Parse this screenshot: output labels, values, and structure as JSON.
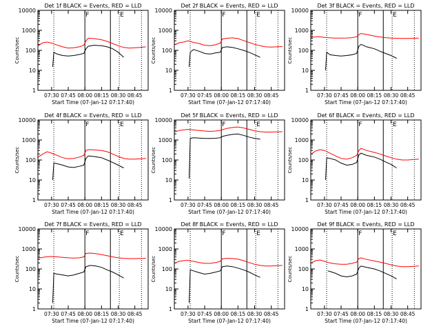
{
  "chart_data": {
    "type": "line",
    "yscale": "log",
    "ylim": [
      1,
      10000
    ],
    "xlim": [
      "07:17:40",
      "08:57:00"
    ],
    "x_ticks": [
      "07:30",
      "07:45",
      "08:00",
      "08:15",
      "08:30",
      "08:45"
    ],
    "y_ticks": [
      "1",
      "10",
      "100",
      "1000",
      "10000"
    ],
    "ylabel": "Counts/sec",
    "xlabel": "Start Time (07-Jan-12 07:17:40)",
    "colors": {
      "events": "#000000",
      "lld": "#ff0000"
    },
    "markers": {
      "solid": [
        "08:00",
        "08:23"
      ],
      "dotted": [
        "07:32",
        "08:31",
        "08:51"
      ],
      "labels": [
        {
          "at": "08:00",
          "text": "F"
        },
        {
          "at": "08:31",
          "text": "E"
        }
      ]
    },
    "panels": [
      {
        "title": "Det 1f BLACK = Events, RED = LLD",
        "series": [
          {
            "name": "Events",
            "x": [
              "07:31",
              "07:32",
              "07:35",
              "07:40",
              "07:45",
              "07:50",
              "07:55",
              "07:59",
              "08:01",
              "08:03",
              "08:08",
              "08:15",
              "08:20",
              "08:25",
              "08:30",
              "08:35"
            ],
            "values": [
              15,
              80,
              65,
              55,
              52,
              55,
              62,
              70,
              120,
              160,
              180,
              170,
              150,
              120,
              80,
              45
            ]
          },
          {
            "name": "LLD",
            "x": [
              "07:18",
              "07:22",
              "07:26",
              "07:30",
              "07:35",
              "07:40",
              "07:45",
              "07:50",
              "07:55",
              "07:59",
              "08:01",
              "08:03",
              "08:08",
              "08:15",
              "08:20",
              "08:25",
              "08:30",
              "08:35",
              "08:40",
              "08:45",
              "08:50",
              "08:55"
            ],
            "values": [
              170,
              240,
              260,
              230,
              185,
              150,
              130,
              135,
              150,
              180,
              300,
              400,
              390,
              340,
              280,
              220,
              170,
              140,
              130,
              135,
              140,
              150
            ]
          }
        ]
      },
      {
        "title": "Det 2f BLACK = Events, RED = LLD",
        "series": [
          {
            "name": "Events",
            "x": [
              "07:31",
              "07:32",
              "07:35",
              "07:40",
              "07:45",
              "07:50",
              "07:55",
              "07:59",
              "08:01",
              "08:05",
              "08:10",
              "08:15",
              "08:20",
              "08:25",
              "08:30",
              "08:35"
            ],
            "values": [
              15,
              80,
              110,
              90,
              70,
              65,
              75,
              80,
              140,
              150,
              140,
              120,
              100,
              80,
              60,
              45
            ]
          },
          {
            "name": "LLD",
            "x": [
              "07:18",
              "07:22",
              "07:26",
              "07:30",
              "07:35",
              "07:40",
              "07:45",
              "07:50",
              "07:55",
              "07:59",
              "08:01",
              "08:05",
              "08:10",
              "08:15",
              "08:20",
              "08:25",
              "08:30",
              "08:35",
              "08:40",
              "08:45",
              "08:50",
              "08:55"
            ],
            "values": [
              190,
              240,
              260,
              300,
              250,
              220,
              180,
              170,
              190,
              230,
              370,
              400,
              420,
              390,
              310,
              250,
              200,
              170,
              150,
              145,
              150,
              155
            ]
          }
        ]
      },
      {
        "title": "Det 3f BLACK = Events, RED = LLD",
        "series": [
          {
            "name": "Events",
            "x": [
              "07:31",
              "07:32",
              "07:35",
              "07:40",
              "07:45",
              "07:50",
              "07:55",
              "07:59",
              "08:01",
              "08:03",
              "08:08",
              "08:15",
              "08:20",
              "08:25",
              "08:30",
              "08:35"
            ],
            "values": [
              10,
              80,
              60,
              55,
              52,
              55,
              60,
              70,
              160,
              200,
              150,
              120,
              90,
              70,
              55,
              40
            ]
          },
          {
            "name": "LLD",
            "x": [
              "07:18",
              "07:25",
              "07:30",
              "07:35",
              "07:40",
              "07:45",
              "07:50",
              "07:55",
              "07:59",
              "08:01",
              "08:03",
              "08:08",
              "08:15",
              "08:20",
              "08:25",
              "08:30",
              "08:35",
              "08:40",
              "08:45",
              "08:50",
              "08:55"
            ],
            "values": [
              450,
              480,
              440,
              420,
              410,
              410,
              415,
              430,
              480,
              600,
              700,
              620,
              520,
              470,
              430,
              410,
              400,
              395,
              395,
              400,
              405
            ]
          }
        ]
      },
      {
        "title": "Det 4f BLACK = Events, RED = LLD",
        "series": [
          {
            "name": "Events",
            "x": [
              "07:31",
              "07:32",
              "07:35",
              "07:40",
              "07:45",
              "07:50",
              "07:55",
              "07:59",
              "08:01",
              "08:03",
              "08:08",
              "08:15",
              "08:20",
              "08:25",
              "08:30",
              "08:35"
            ],
            "values": [
              10,
              70,
              65,
              55,
              45,
              42,
              48,
              55,
              120,
              160,
              150,
              130,
              100,
              75,
              55,
              40
            ]
          },
          {
            "name": "LLD",
            "x": [
              "07:18",
              "07:22",
              "07:26",
              "07:30",
              "07:35",
              "07:40",
              "07:45",
              "07:50",
              "07:55",
              "07:59",
              "08:01",
              "08:03",
              "08:08",
              "08:15",
              "08:20",
              "08:25",
              "08:30",
              "08:35",
              "08:40",
              "08:45",
              "08:50",
              "08:55"
            ],
            "values": [
              140,
              200,
              260,
              220,
              170,
              130,
              115,
              120,
              140,
              170,
              300,
              330,
              320,
              300,
              260,
              200,
              150,
              120,
              110,
              110,
              115,
              120
            ]
          }
        ]
      },
      {
        "title": "Det 5f BLACK = Events, RED = LLD",
        "series": [
          {
            "name": "Events",
            "x": [
              "07:31",
              "07:32",
              "07:35",
              "07:40",
              "07:45",
              "07:50",
              "07:55",
              "07:59",
              "08:01",
              "08:05",
              "08:10",
              "08:15",
              "08:20",
              "08:25",
              "08:30",
              "08:35"
            ],
            "values": [
              12,
              1200,
              1300,
              1250,
              1200,
              1200,
              1220,
              1300,
              1500,
              1700,
              1900,
              2000,
              1700,
              1400,
              1200,
              1100
            ]
          },
          {
            "name": "LLD",
            "x": [
              "07:18",
              "07:22",
              "07:26",
              "07:30",
              "07:35",
              "07:40",
              "07:45",
              "07:50",
              "07:55",
              "07:59",
              "08:01",
              "08:05",
              "08:10",
              "08:15",
              "08:20",
              "08:25",
              "08:30",
              "08:35",
              "08:40",
              "08:45",
              "08:50",
              "08:55"
            ],
            "values": [
              2500,
              3000,
              3200,
              3400,
              3200,
              3000,
              2800,
              2700,
              2800,
              3000,
              3300,
              3800,
              4200,
              4500,
              4000,
              3400,
              2900,
              2600,
              2500,
              2500,
              2550,
              2600
            ]
          }
        ]
      },
      {
        "title": "Det 6f BLACK = Events, RED = LLD",
        "series": [
          {
            "name": "Events",
            "x": [
              "07:31",
              "07:32",
              "07:35",
              "07:40",
              "07:45",
              "07:50",
              "07:55",
              "07:59",
              "08:01",
              "08:03",
              "08:08",
              "08:15",
              "08:20",
              "08:25",
              "08:30",
              "08:35"
            ],
            "values": [
              10,
              130,
              120,
              100,
              70,
              55,
              60,
              75,
              180,
              220,
              170,
              140,
              110,
              80,
              60,
              40
            ]
          },
          {
            "name": "LLD",
            "x": [
              "07:18",
              "07:22",
              "07:26",
              "07:30",
              "07:35",
              "07:40",
              "07:45",
              "07:50",
              "07:55",
              "07:59",
              "08:01",
              "08:03",
              "08:08",
              "08:15",
              "08:20",
              "08:25",
              "08:30",
              "08:35",
              "08:40",
              "08:45",
              "08:50",
              "08:55"
            ],
            "values": [
              200,
              280,
              330,
              300,
              220,
              160,
              120,
              110,
              130,
              170,
              300,
              380,
              300,
              240,
              200,
              160,
              130,
              110,
              100,
              100,
              105,
              110
            ]
          }
        ]
      },
      {
        "title": "Det 7f BLACK = Events, RED = LLD",
        "series": [
          {
            "name": "Events",
            "x": [
              "07:31",
              "07:32",
              "07:35",
              "07:40",
              "07:45",
              "07:50",
              "07:55",
              "07:59",
              "08:01",
              "08:05",
              "08:10",
              "08:15",
              "08:20",
              "08:25",
              "08:30",
              "08:35"
            ],
            "values": [
              2,
              60,
              55,
              50,
              45,
              50,
              60,
              70,
              130,
              150,
              140,
              120,
              90,
              70,
              50,
              35
            ]
          },
          {
            "name": "LLD",
            "x": [
              "07:18",
              "07:25",
              "07:30",
              "07:35",
              "07:40",
              "07:45",
              "07:50",
              "07:55",
              "07:59",
              "08:01",
              "08:05",
              "08:10",
              "08:15",
              "08:20",
              "08:25",
              "08:30",
              "08:35",
              "08:40",
              "08:45",
              "08:50",
              "08:55"
            ],
            "values": [
              350,
              400,
              420,
              400,
              380,
              360,
              350,
              360,
              400,
              600,
              620,
              580,
              520,
              460,
              400,
              360,
              340,
              330,
              330,
              335,
              340
            ]
          }
        ]
      },
      {
        "title": "Det 8f BLACK = Events, RED = LLD",
        "series": [
          {
            "name": "Events",
            "x": [
              "07:31",
              "07:32",
              "07:35",
              "07:40",
              "07:45",
              "07:50",
              "07:55",
              "07:59",
              "08:01",
              "08:05",
              "08:10",
              "08:15",
              "08:20",
              "08:25",
              "08:30",
              "08:35"
            ],
            "values": [
              2,
              90,
              80,
              65,
              55,
              60,
              70,
              80,
              130,
              140,
              130,
              110,
              90,
              70,
              50,
              38
            ]
          },
          {
            "name": "LLD",
            "x": [
              "07:18",
              "07:22",
              "07:26",
              "07:30",
              "07:35",
              "07:40",
              "07:45",
              "07:50",
              "07:55",
              "07:59",
              "08:01",
              "08:05",
              "08:10",
              "08:15",
              "08:20",
              "08:25",
              "08:30",
              "08:35",
              "08:40",
              "08:45",
              "08:50",
              "08:55"
            ],
            "values": [
              200,
              240,
              260,
              270,
              240,
              210,
              190,
              190,
              210,
              240,
              320,
              340,
              330,
              310,
              260,
              210,
              170,
              150,
              140,
              140,
              145,
              150
            ]
          }
        ]
      },
      {
        "title": "Det 9f BLACK = Events, RED = LLD",
        "series": [
          {
            "name": "Events",
            "x": [
              "07:33",
              "07:35",
              "07:40",
              "07:45",
              "07:50",
              "07:55",
              "07:59",
              "08:01",
              "08:03",
              "08:08",
              "08:15",
              "08:20",
              "08:25",
              "08:30",
              "08:35"
            ],
            "values": [
              80,
              75,
              60,
              45,
              40,
              45,
              55,
              110,
              140,
              120,
              100,
              80,
              60,
              45,
              32
            ]
          },
          {
            "name": "LLD",
            "x": [
              "07:18",
              "07:22",
              "07:26",
              "07:30",
              "07:35",
              "07:40",
              "07:45",
              "07:50",
              "07:55",
              "07:59",
              "08:01",
              "08:03",
              "08:08",
              "08:15",
              "08:20",
              "08:25",
              "08:30",
              "08:35",
              "08:40",
              "08:45",
              "08:50",
              "08:55"
            ],
            "values": [
              200,
              260,
              280,
              240,
              200,
              180,
              170,
              170,
              190,
              220,
              330,
              360,
              300,
              250,
              220,
              190,
              160,
              140,
              130,
              130,
              135,
              140
            ]
          }
        ]
      }
    ]
  }
}
